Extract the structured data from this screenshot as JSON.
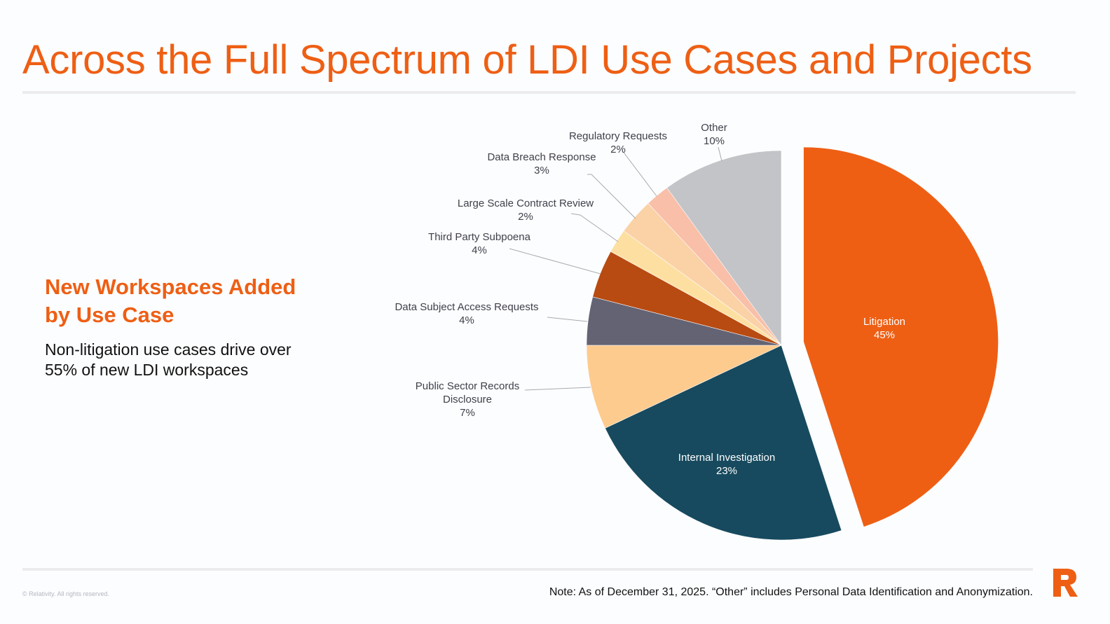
{
  "header": {
    "title": "Across the Full Spectrum of LDI Use Cases and Projects"
  },
  "left_panel": {
    "subhead_line1": "New Workspaces Added",
    "subhead_line2": "by Use Case",
    "body_line1": "Non-litigation use cases drive over",
    "body_line2": "55% of new LDI workspaces"
  },
  "chart_data": {
    "type": "pie",
    "title": "",
    "start_angle": "12 o'clock, clockwise",
    "exploded": [
      "Litigation"
    ],
    "slices": [
      {
        "label": "Litigation",
        "value": 45,
        "display": "45%",
        "color": "#ee5f14"
      },
      {
        "label": "Internal Investigation",
        "value": 23,
        "display": "23%",
        "color": "#174a5e"
      },
      {
        "label": "Public Sector Records Disclosure",
        "label_lines": [
          "Public Sector Records",
          "Disclosure"
        ],
        "value": 7,
        "display": "7%",
        "color": "#fecb8e"
      },
      {
        "label": "Data Subject Access Requests",
        "value": 4,
        "display": "4%",
        "color": "#646374"
      },
      {
        "label": "Third Party Subpoena",
        "value": 4,
        "display": "4%",
        "color": "#b84b12"
      },
      {
        "label": "Large Scale Contract Review",
        "value": 2,
        "display": "2%",
        "color": "#fde0a1"
      },
      {
        "label": "Data Breach Response",
        "value": 3,
        "display": "3%",
        "color": "#fbd1a6"
      },
      {
        "label": "Regulatory Requests",
        "value": 2,
        "display": "2%",
        "color": "#f9bfa8"
      },
      {
        "label": "Other",
        "value": 10,
        "display": "10%",
        "color": "#c3c4c7"
      }
    ]
  },
  "footer": {
    "copyright": "© Relativity. All rights reserved.",
    "note": "Note: As of December 31, 2025. “Other” includes Personal Data Identification and Anonymization.",
    "logo_text": "R",
    "brand_color": "#ee5f14"
  }
}
